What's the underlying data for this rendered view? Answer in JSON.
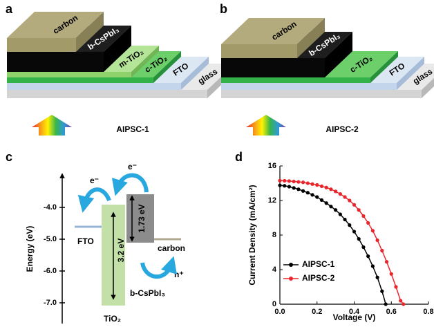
{
  "panels": {
    "a": {
      "label": "a",
      "layers": [
        "glass",
        "FTO",
        "c-TiO₂",
        "m-TiO₂",
        "b-CsPbI₃",
        "carbon"
      ],
      "caption": "AIPSC-1"
    },
    "b": {
      "label": "b",
      "layers": [
        "glass",
        "FTO",
        "c-TiO₂",
        "b-CsPbI₃",
        "carbon"
      ],
      "caption": "AIPSC-2"
    },
    "c": {
      "label": "c",
      "ylabel": "Energy (eV)",
      "yticks": [
        "-4.0",
        "-5.0",
        "-6.0",
        "-7.0"
      ],
      "fto": "FTO",
      "carbon": "carbon",
      "perovskite": "b-CsPbI₃",
      "tio2": "TiO₂",
      "gap_tio2": "3.2 eV",
      "gap_perovskite": "1.73 eV",
      "electron": "e⁻",
      "hole": "h⁺"
    }
  },
  "chart_data": {
    "type": "line",
    "label": "d",
    "xlabel": "Voltage (V)",
    "ylabel": "Current Density (mA/cm²)",
    "xlim": [
      0,
      0.8
    ],
    "ylim": [
      0,
      16
    ],
    "xticks": [
      {
        "value": 0,
        "label": "0.0"
      },
      0.2,
      0.4,
      0.6,
      0.8
    ],
    "yticks": [
      0,
      4,
      8,
      12,
      16
    ],
    "legend": "lower left",
    "series": [
      {
        "name": "AIPSC-1",
        "color": "#000000",
        "x": [
          0,
          0.025,
          0.05,
          0.075,
          0.1,
          0.125,
          0.15,
          0.175,
          0.2,
          0.225,
          0.25,
          0.275,
          0.3,
          0.325,
          0.35,
          0.375,
          0.4,
          0.425,
          0.45,
          0.475,
          0.5,
          0.525,
          0.55,
          0.57
        ],
        "values": [
          13.75,
          13.7,
          13.6,
          13.45,
          13.3,
          13.1,
          12.9,
          12.65,
          12.4,
          12.05,
          11.7,
          11.3,
          10.9,
          10.4,
          9.8,
          9.15,
          8.4,
          7.55,
          6.6,
          5.55,
          4.4,
          3.1,
          1.5,
          0
        ]
      },
      {
        "name": "AIPSC-2",
        "color": "#e8262b",
        "x": [
          0,
          0.025,
          0.05,
          0.075,
          0.1,
          0.125,
          0.15,
          0.175,
          0.2,
          0.225,
          0.25,
          0.275,
          0.3,
          0.325,
          0.35,
          0.375,
          0.4,
          0.425,
          0.45,
          0.475,
          0.5,
          0.525,
          0.55,
          0.575,
          0.6,
          0.625,
          0.65,
          0.665
        ],
        "values": [
          14.3,
          14.28,
          14.25,
          14.2,
          14.15,
          14.1,
          14.0,
          13.9,
          13.8,
          13.65,
          13.5,
          13.3,
          13.05,
          12.75,
          12.4,
          12.0,
          11.5,
          10.9,
          10.2,
          9.4,
          8.5,
          7.4,
          6.2,
          4.9,
          3.5,
          2.0,
          0.4,
          0
        ]
      }
    ]
  }
}
